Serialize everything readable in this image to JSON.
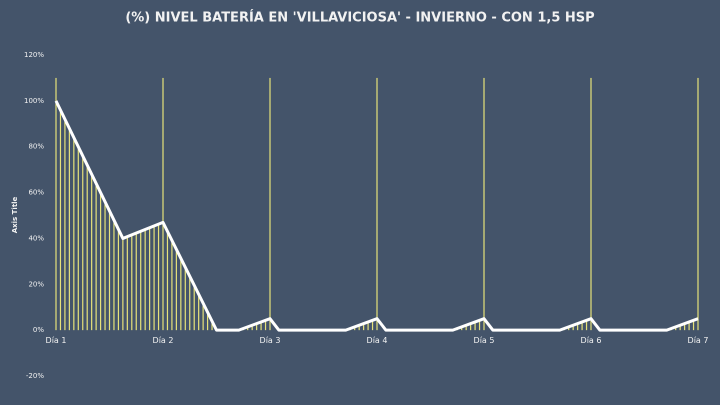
{
  "chart_data": {
    "type": "line",
    "title": "(%) NIVEL BATERÍA  EN 'VILLAVICIOSA'  - INVIERNO - CON 1,5 HSP",
    "y_axis_title": "Axis Title",
    "xlim": [
      0,
      144
    ],
    "ylim": [
      -20,
      120
    ],
    "xticks": [
      {
        "value": 0,
        "label": "Día 1"
      },
      {
        "value": 24,
        "label": "Día 2"
      },
      {
        "value": 48,
        "label": "Día 3"
      },
      {
        "value": 72,
        "label": "Día 4"
      },
      {
        "value": 96,
        "label": "Día 5"
      },
      {
        "value": 120,
        "label": "Día 6"
      },
      {
        "value": 144,
        "label": "Día 7"
      }
    ],
    "yticks": [
      {
        "value": -20,
        "label": "-20%"
      },
      {
        "value": 0,
        "label": "0%"
      },
      {
        "value": 20,
        "label": "20%"
      },
      {
        "value": 40,
        "label": "40%"
      },
      {
        "value": 60,
        "label": "60%"
      },
      {
        "value": 80,
        "label": "80%"
      },
      {
        "value": 100,
        "label": "100%"
      },
      {
        "value": 120,
        "label": "120%"
      }
    ],
    "series": [
      {
        "type": "bar",
        "color": "#e6e27a",
        "x": [
          0,
          1,
          2,
          3,
          4,
          5,
          6,
          7,
          8,
          9,
          10,
          11,
          12,
          13,
          14,
          15,
          16,
          17,
          18,
          19,
          20,
          21,
          22,
          23,
          24,
          25,
          26,
          27,
          28,
          29,
          30,
          31,
          32,
          33,
          34,
          35,
          42,
          43,
          44,
          45,
          46,
          47,
          48,
          66,
          67,
          68,
          69,
          70,
          71,
          72,
          90,
          91,
          92,
          93,
          94,
          95,
          96,
          114,
          115,
          116,
          117,
          118,
          119,
          120,
          138,
          139,
          140,
          141,
          142,
          143,
          144
        ],
        "values": [
          110,
          96,
          92,
          88,
          84,
          80,
          76,
          72,
          68,
          64,
          60,
          56,
          52,
          48,
          44,
          40,
          41,
          42,
          42,
          43,
          44,
          45,
          45,
          46,
          110,
          43,
          39,
          35,
          31,
          27,
          23,
          20,
          16,
          12,
          8,
          4,
          1,
          1,
          2,
          3,
          4,
          4,
          110,
          1,
          1,
          2,
          3,
          4,
          4,
          110,
          1,
          1,
          2,
          3,
          4,
          4,
          110,
          1,
          1,
          2,
          3,
          4,
          4,
          110,
          1,
          1,
          2,
          3,
          4,
          4,
          110
        ]
      },
      {
        "type": "line",
        "color": "#ffffff",
        "x": [
          0,
          15,
          24,
          36,
          41,
          48,
          50,
          65,
          72,
          74,
          89,
          96,
          98,
          113,
          120,
          122,
          137,
          144
        ],
        "values": [
          100,
          40,
          47,
          0,
          0,
          5,
          0,
          0,
          5,
          0,
          0,
          5,
          0,
          0,
          5,
          0,
          0,
          5
        ]
      }
    ]
  }
}
